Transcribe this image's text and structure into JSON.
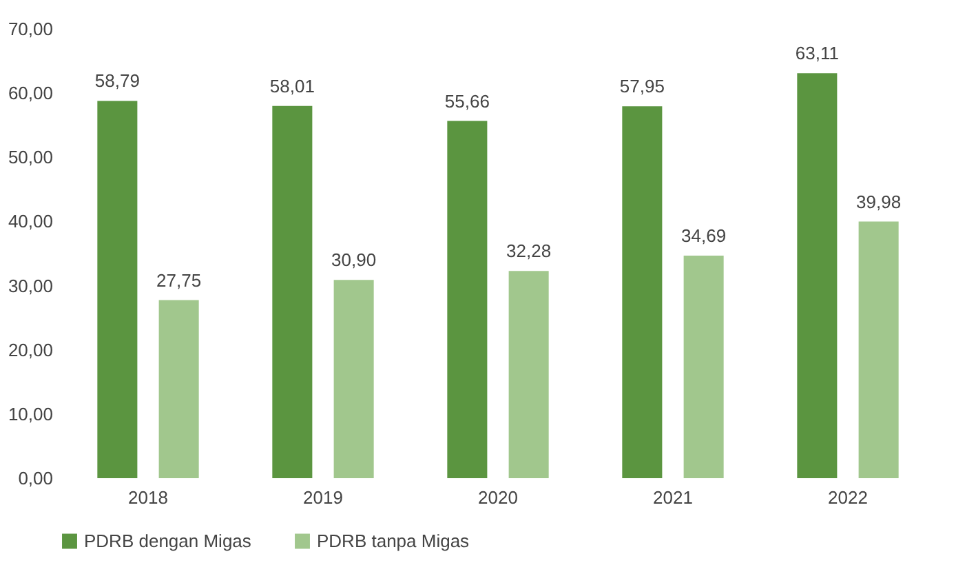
{
  "chart_data": {
    "type": "bar",
    "categories": [
      "2018",
      "2019",
      "2020",
      "2021",
      "2022"
    ],
    "series": [
      {
        "name": "PDRB dengan Migas",
        "color": "#5b9540",
        "values": [
          58.79,
          58.01,
          55.66,
          57.95,
          63.11
        ],
        "value_labels": [
          "58,79",
          "58,01",
          "55,66",
          "57,95",
          "63,11"
        ]
      },
      {
        "name": "PDRB tanpa Migas",
        "color": "#a1c78d",
        "values": [
          27.75,
          30.9,
          32.28,
          34.69,
          39.98
        ],
        "value_labels": [
          "27,75",
          "30,90",
          "32,28",
          "34,69",
          "39,98"
        ]
      }
    ],
    "ylim": [
      0,
      70
    ],
    "yticks": [
      {
        "value": 0,
        "label": "0,00"
      },
      {
        "value": 10,
        "label": "10,00"
      },
      {
        "value": 20,
        "label": "20,00"
      },
      {
        "value": 30,
        "label": "30,00"
      },
      {
        "value": 40,
        "label": "40,00"
      },
      {
        "value": 50,
        "label": "50,00"
      },
      {
        "value": 60,
        "label": "60,00"
      },
      {
        "value": 70,
        "label": "70,00"
      }
    ],
    "legend": "bottom"
  }
}
